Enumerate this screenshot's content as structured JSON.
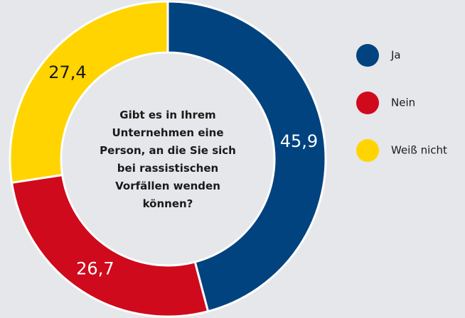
{
  "chart_data": {
    "type": "donut",
    "title": "Gibt es in Ihrem Unternehmen eine Person, an die Sie sich bei rassistischen Vorfällen wenden können?",
    "categories": [
      "Ja",
      "Nein",
      "Weiß nicht"
    ],
    "values": [
      45.9,
      26.7,
      27.4
    ],
    "value_labels": [
      "45,9",
      "26,7",
      "27,4"
    ],
    "colors": [
      "#00437f",
      "#cf0a1c",
      "#ffd400"
    ],
    "legend": "right"
  }
}
